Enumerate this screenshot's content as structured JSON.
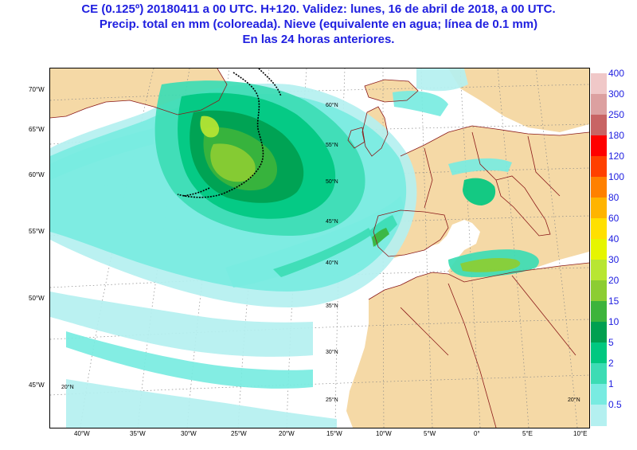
{
  "title": {
    "line1": "CE (0.125º) 20180411 a 00 UTC.  H+120. Validez: lunes, 16 de abril de 2018,  a  00 UTC.",
    "line2": "Precip. total en mm (coloreada). Nieve (equivalente en agua; línea de 0.1 mm)",
    "line3": "En las 24 horas anteriores."
  },
  "left_labels": [
    "70°W",
    "65°W",
    "60°W",
    "55°W",
    "50°W",
    "45°W"
  ],
  "bottom_labels": [
    "40°W",
    "35°W",
    "30°W",
    "25°W",
    "20°W",
    "15°W",
    "10°W",
    "5°W",
    "0°",
    "5°E",
    "10°E"
  ],
  "inner_lat_labels": [
    "60°N",
    "55°N",
    "50°N",
    "45°N",
    "40°N",
    "35°N",
    "30°N",
    "25°N"
  ],
  "inner_lon_labels": [
    "20°N",
    "20°N"
  ],
  "colors": {
    "title": "#2020e0",
    "land": "#f5d9a6",
    "border": "#8b1a1a",
    "snow_line": "#000000",
    "ocean": "#ffffff"
  },
  "legend": [
    {
      "value": "400",
      "color": "#f0c8c8"
    },
    {
      "value": "300",
      "color": "#dca0a0"
    },
    {
      "value": "250",
      "color": "#c86464"
    },
    {
      "value": "180",
      "color": "#ff0000"
    },
    {
      "value": "120",
      "color": "#ff4000"
    },
    {
      "value": "100",
      "color": "#ff8000"
    },
    {
      "value": "80",
      "color": "#ffb400"
    },
    {
      "value": "60",
      "color": "#ffe000"
    },
    {
      "value": "40",
      "color": "#e6f500"
    },
    {
      "value": "30",
      "color": "#b8e632"
    },
    {
      "value": "20",
      "color": "#8ccd32"
    },
    {
      "value": "15",
      "color": "#3cb43c"
    },
    {
      "value": "10",
      "color": "#00a050"
    },
    {
      "value": "5",
      "color": "#00c880"
    },
    {
      "value": "2",
      "color": "#3cdcb4"
    },
    {
      "value": "1",
      "color": "#78ebe1"
    },
    {
      "value": "0.5",
      "color": "#b4f0f0"
    }
  ]
}
